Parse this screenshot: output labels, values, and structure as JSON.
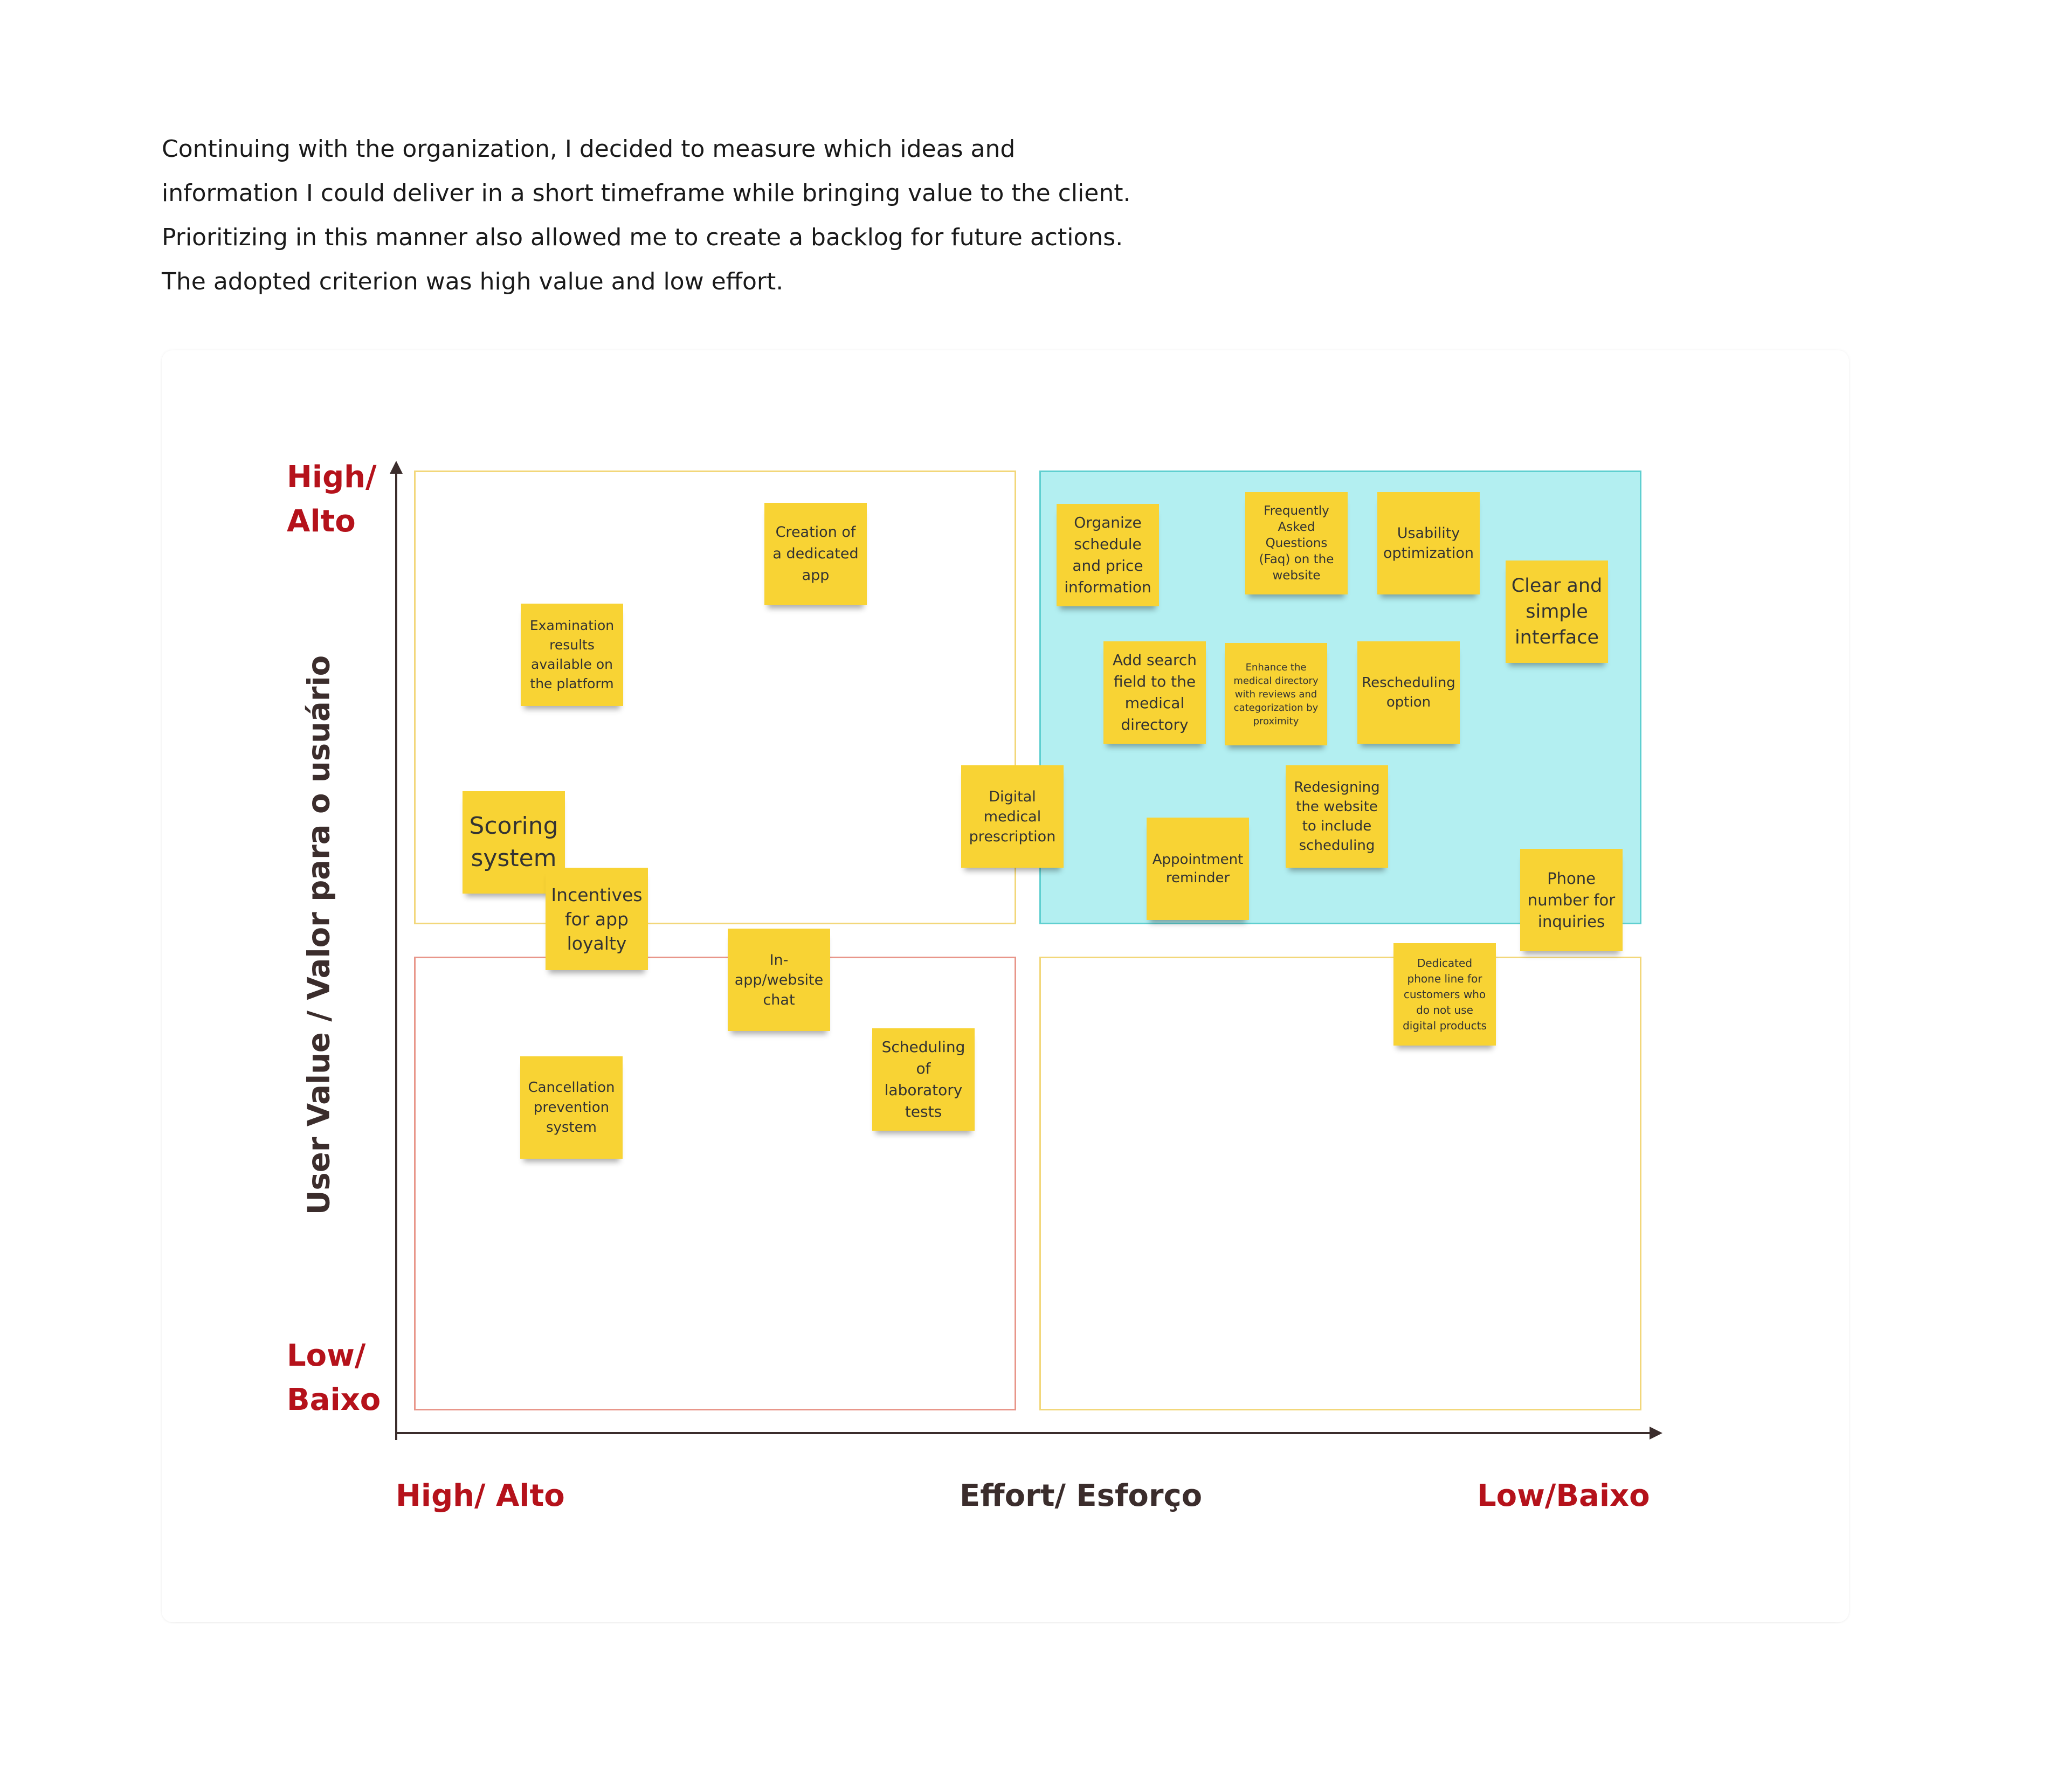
{
  "intro": {
    "line1": "Continuing with the organization, I decided to measure which ideas and",
    "line2": "information I could deliver in a short timeframe while bringing value to the client.",
    "line3": "Prioritizing in this manner also allowed me to create a backlog for future actions.",
    "line4": "The adopted criterion was high value and low effort."
  },
  "matrix": {
    "y_axis_title": "User Value / Valor para o usuário",
    "y_high": "High/ Alto",
    "y_low": "Low/ Baixo",
    "x_axis_title": "Effort/ Esforço",
    "x_high": "High/ Alto",
    "x_low": "Low/Baixo",
    "colors": {
      "highlight_quadrant": "#b3eff1",
      "sticky_note": "#f8d334",
      "axis_label_red": "#b5121b",
      "axis_dark": "#3b2d2c"
    }
  },
  "notes": {
    "creation_app": "Creation of a dedicated app",
    "exam_results": "Examination results available on the platform",
    "scoring": "Scoring system",
    "incentives": "Incentives for app loyalty",
    "digital_rx": "Digital medical prescription",
    "inapp_chat": "In-app/website chat",
    "cancellation": "Cancellation prevention system",
    "lab_tests": "Scheduling of laboratory tests",
    "organize_schedule": "Organize schedule and price information",
    "faq": "Frequently Asked Questions (Faq) on the website",
    "usability": "Usability optimization",
    "clear_interface": "Clear and simple interface",
    "search_field": "Add search field to the medical directory",
    "enhance_directory": "Enhance the medical directory with reviews and categorization by proximity",
    "rescheduling": "Rescheduling option",
    "redesigning": "Redesigning the website to include scheduling",
    "appointment": "Appointment reminder",
    "phone_number": "Phone number for inquiries",
    "dedicated_line": "Dedicated phone line for customers who do not use digital products"
  }
}
